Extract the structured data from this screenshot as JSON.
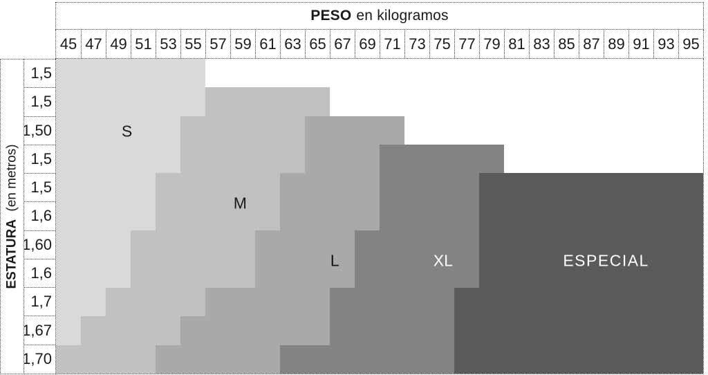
{
  "title": {
    "bold": "PESO",
    "rest": "en kilogramos"
  },
  "y_axis_title": {
    "bold": "ESTATURA",
    "rest": "(en metros)"
  },
  "chart_data": {
    "type": "heatmap",
    "x_axis_label": "PESO en kilogramos",
    "y_axis_label": "ESTATURA (en metros)",
    "weights_kg": [
      45,
      47,
      49,
      51,
      53,
      55,
      57,
      59,
      61,
      63,
      65,
      67,
      69,
      71,
      73,
      75,
      77,
      79,
      81,
      83,
      85,
      87,
      89,
      91,
      93,
      95
    ],
    "height_rows_m": [
      "1,5",
      "1,5",
      "1,50",
      "1,5",
      "1,5",
      "1,6",
      "1,60",
      "1,6",
      "1,7",
      "1,67",
      "1,70"
    ],
    "background_color": "#ffffff",
    "grid_border_color": "#4a4a4a",
    "zones": [
      {
        "id": "S",
        "label": "S",
        "color": "#d9d9d9",
        "label_color": "#1a1a1a",
        "label_anchor": {
          "col": 2.85,
          "row": 2.55
        }
      },
      {
        "id": "M",
        "label": "M",
        "color": "#c1c1c1",
        "label_color": "#1a1a1a",
        "label_anchor": {
          "col": 7.4,
          "row": 5.05
        }
      },
      {
        "id": "L",
        "label": "L",
        "color": "#a9a9a9",
        "label_color": "#111111",
        "label_anchor": {
          "col": 11.2,
          "row": 7.05
        }
      },
      {
        "id": "XL",
        "label": "XL",
        "color": "#838383",
        "label_color": "#ffffff",
        "label_anchor": {
          "col": 15.55,
          "row": 7.05
        }
      },
      {
        "id": "ESPECIAL",
        "label": "ESPECIAL",
        "color": "#5a5a5a",
        "label_color": "#ffffff",
        "label_anchor": {
          "col": 22.1,
          "row": 7.05
        }
      }
    ],
    "row_zone_ranges": [
      {
        "height": "1,5",
        "segments": [
          {
            "zone": "S",
            "from": 45,
            "to": 55
          }
        ]
      },
      {
        "height": "1,5",
        "segments": [
          {
            "zone": "S",
            "from": 45,
            "to": 55
          },
          {
            "zone": "M",
            "from": 57,
            "to": 65
          }
        ]
      },
      {
        "height": "1,50",
        "segments": [
          {
            "zone": "S",
            "from": 45,
            "to": 53
          },
          {
            "zone": "M",
            "from": 55,
            "to": 63
          },
          {
            "zone": "L",
            "from": 65,
            "to": 71
          }
        ]
      },
      {
        "height": "1,5",
        "segments": [
          {
            "zone": "S",
            "from": 45,
            "to": 53
          },
          {
            "zone": "M",
            "from": 55,
            "to": 63
          },
          {
            "zone": "L",
            "from": 65,
            "to": 69
          },
          {
            "zone": "XL",
            "from": 71,
            "to": 79
          }
        ]
      },
      {
        "height": "1,5",
        "segments": [
          {
            "zone": "S",
            "from": 45,
            "to": 51
          },
          {
            "zone": "M",
            "from": 53,
            "to": 61
          },
          {
            "zone": "L",
            "from": 63,
            "to": 69
          },
          {
            "zone": "XL",
            "from": 71,
            "to": 77
          },
          {
            "zone": "ESPECIAL",
            "from": 79,
            "to": 95
          }
        ]
      },
      {
        "height": "1,6",
        "segments": [
          {
            "zone": "S",
            "from": 45,
            "to": 51
          },
          {
            "zone": "M",
            "from": 53,
            "to": 61
          },
          {
            "zone": "L",
            "from": 63,
            "to": 69
          },
          {
            "zone": "XL",
            "from": 71,
            "to": 77
          },
          {
            "zone": "ESPECIAL",
            "from": 79,
            "to": 95
          }
        ]
      },
      {
        "height": "1,60",
        "segments": [
          {
            "zone": "S",
            "from": 45,
            "to": 49
          },
          {
            "zone": "M",
            "from": 51,
            "to": 59
          },
          {
            "zone": "L",
            "from": 61,
            "to": 67
          },
          {
            "zone": "XL",
            "from": 69,
            "to": 77
          },
          {
            "zone": "ESPECIAL",
            "from": 79,
            "to": 95
          }
        ]
      },
      {
        "height": "1,6",
        "segments": [
          {
            "zone": "S",
            "from": 45,
            "to": 49
          },
          {
            "zone": "M",
            "from": 51,
            "to": 59
          },
          {
            "zone": "L",
            "from": 61,
            "to": 67
          },
          {
            "zone": "XL",
            "from": 69,
            "to": 77
          },
          {
            "zone": "ESPECIAL",
            "from": 79,
            "to": 95
          }
        ]
      },
      {
        "height": "1,7",
        "segments": [
          {
            "zone": "S",
            "from": 45,
            "to": 47
          },
          {
            "zone": "M",
            "from": 49,
            "to": 55
          },
          {
            "zone": "L",
            "from": 57,
            "to": 65
          },
          {
            "zone": "XL",
            "from": 67,
            "to": 75
          },
          {
            "zone": "ESPECIAL",
            "from": 77,
            "to": 95
          }
        ]
      },
      {
        "height": "1,67",
        "segments": [
          {
            "zone": "S",
            "from": 45,
            "to": 45
          },
          {
            "zone": "M",
            "from": 47,
            "to": 53
          },
          {
            "zone": "L",
            "from": 55,
            "to": 65
          },
          {
            "zone": "XL",
            "from": 67,
            "to": 75
          },
          {
            "zone": "ESPECIAL",
            "from": 77,
            "to": 95
          }
        ]
      },
      {
        "height": "1,70",
        "segments": [
          {
            "zone": "M",
            "from": 45,
            "to": 51
          },
          {
            "zone": "L",
            "from": 53,
            "to": 61
          },
          {
            "zone": "XL",
            "from": 63,
            "to": 75
          },
          {
            "zone": "ESPECIAL",
            "from": 77,
            "to": 95
          }
        ]
      }
    ]
  }
}
